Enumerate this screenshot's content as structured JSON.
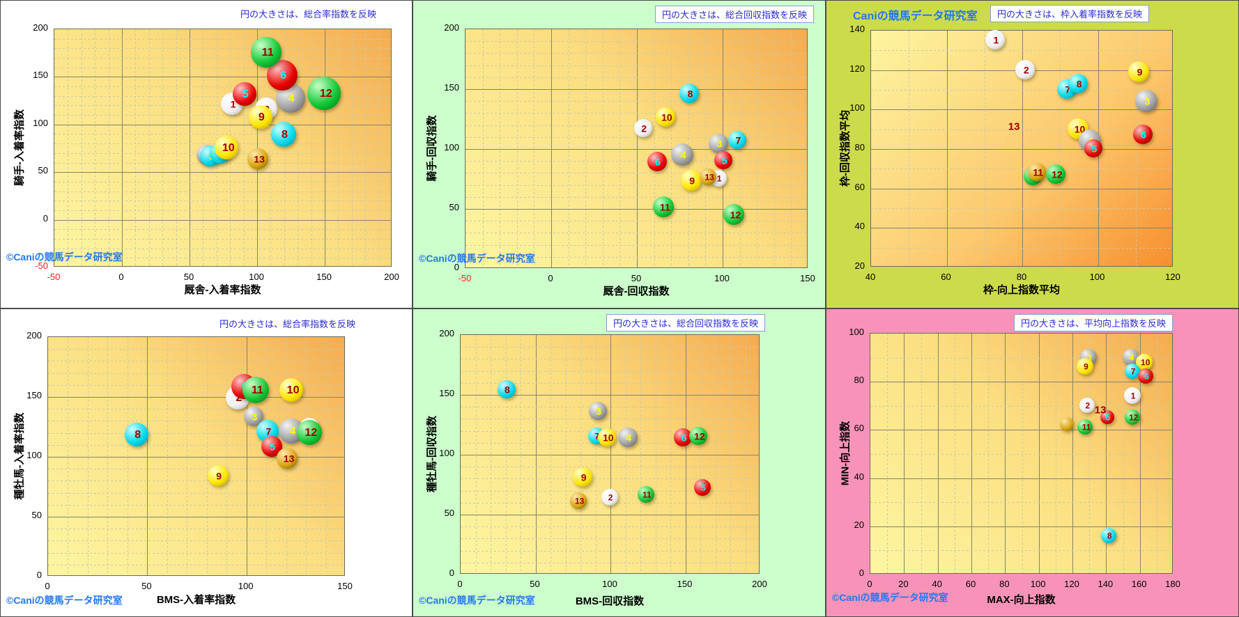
{
  "page": {
    "copyright": "©Caniの競馬データ研究室",
    "brand_header": "Caniの競馬データ研究室"
  },
  "ball_palette": {
    "white": [
      "#ffffff",
      "#f0f0f0",
      "#a8a8a8"
    ],
    "gray": [
      "#f4f4f4",
      "#9e9e9e",
      "#525252"
    ],
    "red": [
      "#ffc4c4",
      "#e60000",
      "#7c0000"
    ],
    "cyan": [
      "#ccffff",
      "#00d8ea",
      "#00879e"
    ],
    "yellow": [
      "#ffffcf",
      "#ffe600",
      "#b29400"
    ],
    "green": [
      "#c8ffc8",
      "#12c634",
      "#006e14"
    ],
    "gold": [
      "#ffe9ae",
      "#d9a511",
      "#6b5000"
    ]
  },
  "number_label_colors": {
    "default": "#a00000",
    "3": "#ffff00",
    "4": "#ffff00",
    "5": "#00ffff",
    "6": "#00ffff"
  },
  "chart_data": [
    {
      "type": "bubble",
      "panel_bg": "#ffffff",
      "annotation": "円の大きさは、総合率指数を反映",
      "xlabel": "厩舎-入着率指数",
      "ylabel": "騎手-入着率指数",
      "xlim": [
        -50,
        200
      ],
      "ylim": [
        -50,
        200
      ],
      "x_ticks": [
        -50,
        0,
        50,
        100,
        150,
        200
      ],
      "y_ticks": [
        -50,
        0,
        50,
        100,
        150,
        200
      ],
      "grid": "on",
      "show_copyright": true,
      "show_header": false,
      "points": [
        {
          "label": "",
          "x": 63,
          "y": 68,
          "r": 14,
          "color": "gray"
        },
        {
          "label": "3",
          "x": 66,
          "y": 66,
          "r": 15,
          "color": "cyan"
        },
        {
          "label": "7",
          "x": 73,
          "y": 69,
          "r": 15,
          "color": "cyan"
        },
        {
          "label": "10",
          "x": 78,
          "y": 75,
          "r": 17,
          "color": "yellow"
        },
        {
          "label": "1",
          "x": 82,
          "y": 121,
          "r": 16,
          "color": "white"
        },
        {
          "label": "5",
          "x": 91,
          "y": 131,
          "r": 17,
          "color": "red"
        },
        {
          "label": "2",
          "x": 107,
          "y": 116,
          "r": 16,
          "color": "white"
        },
        {
          "label": "9",
          "x": 103,
          "y": 107,
          "r": 17,
          "color": "yellow"
        },
        {
          "label": "13",
          "x": 101,
          "y": 63,
          "r": 15,
          "color": "gold"
        },
        {
          "label": "4",
          "x": 125,
          "y": 127,
          "r": 21,
          "color": "gray"
        },
        {
          "label": "6",
          "x": 119,
          "y": 151,
          "r": 22,
          "color": "red"
        },
        {
          "label": "11",
          "x": 107,
          "y": 175,
          "r": 22,
          "color": "green"
        },
        {
          "label": "12",
          "x": 150,
          "y": 132,
          "r": 24,
          "color": "green"
        },
        {
          "label": "8",
          "x": 120,
          "y": 89,
          "r": 18,
          "color": "cyan"
        }
      ],
      "text_labels": []
    },
    {
      "type": "bubble",
      "panel_bg": "#ccffcc",
      "annotation": "円の大きさは、総合回収指数を反映",
      "xlabel": "厩舎-回収指数",
      "ylabel": "騎手-回収指数",
      "xlim": [
        -50,
        150
      ],
      "ylim": [
        0,
        200
      ],
      "x_ticks": [
        -50,
        0,
        50,
        100,
        150
      ],
      "y_ticks": [
        0,
        50,
        100,
        150,
        200
      ],
      "grid": "on",
      "show_copyright": true,
      "show_header": false,
      "points": [
        {
          "label": "4",
          "x": 77,
          "y": 95,
          "r": 16,
          "color": "gray"
        },
        {
          "label": "6",
          "x": 62,
          "y": 89,
          "r": 14,
          "color": "red"
        },
        {
          "label": "2",
          "x": 54,
          "y": 117,
          "r": 13,
          "color": "white"
        },
        {
          "label": "10",
          "x": 67,
          "y": 126,
          "r": 14,
          "color": "yellow"
        },
        {
          "label": "8",
          "x": 81,
          "y": 146,
          "r": 14,
          "color": "cyan"
        },
        {
          "label": "3",
          "x": 98,
          "y": 104,
          "r": 14,
          "color": "gray"
        },
        {
          "label": "7",
          "x": 109,
          "y": 107,
          "r": 13,
          "color": "cyan"
        },
        {
          "label": "5",
          "x": 101,
          "y": 90,
          "r": 13,
          "color": "red"
        },
        {
          "label": "9",
          "x": 82,
          "y": 73,
          "r": 15,
          "color": "yellow"
        },
        {
          "label": "1",
          "x": 98,
          "y": 75,
          "r": 12,
          "color": "white"
        },
        {
          "label": "13",
          "x": 92,
          "y": 76,
          "r": 12,
          "color": "gold"
        },
        {
          "label": "11",
          "x": 66,
          "y": 51,
          "r": 15,
          "color": "green"
        },
        {
          "label": "12",
          "x": 107,
          "y": 45,
          "r": 15,
          "color": "green"
        }
      ],
      "text_labels": []
    },
    {
      "type": "bubble",
      "panel_bg": "#cbdb4b",
      "annotation": "円の大きさは、枠入着率指数を反映",
      "xlabel": "枠-向上指数平均",
      "ylabel": "枠-回収指数平均",
      "xlim": [
        40,
        120
      ],
      "ylim": [
        20,
        140
      ],
      "x_ticks": [
        40,
        60,
        80,
        100,
        120
      ],
      "y_ticks": [
        20,
        40,
        60,
        80,
        100,
        120,
        140
      ],
      "grid": "on",
      "show_copyright": false,
      "show_header": true,
      "points": [
        {
          "label": "1",
          "x": 73,
          "y": 135,
          "r": 14,
          "color": "white"
        },
        {
          "label": "2",
          "x": 81,
          "y": 120,
          "r": 14,
          "color": "white"
        },
        {
          "label": "7",
          "x": 92,
          "y": 110,
          "r": 14,
          "color": "cyan"
        },
        {
          "label": "8",
          "x": 95,
          "y": 113,
          "r": 14,
          "color": "cyan"
        },
        {
          "label": "9",
          "x": 111,
          "y": 119,
          "r": 15,
          "color": "yellow"
        },
        {
          "label": "3",
          "x": 113,
          "y": 104,
          "r": 16,
          "color": "gray"
        },
        {
          "label": "10",
          "x": 95,
          "y": 90,
          "r": 15,
          "color": "yellow"
        },
        {
          "label": "4",
          "x": 98,
          "y": 84,
          "r": 16,
          "color": "gray"
        },
        {
          "label": "5",
          "x": 99,
          "y": 80,
          "r": 13,
          "color": "red"
        },
        {
          "label": "6",
          "x": 112,
          "y": 87,
          "r": 14,
          "color": "red"
        },
        {
          "label": "",
          "x": 83,
          "y": 66,
          "r": 13,
          "color": "green"
        },
        {
          "label": "11",
          "x": 84,
          "y": 68,
          "r": 13,
          "color": "gold"
        },
        {
          "label": "12",
          "x": 89,
          "y": 67,
          "r": 14,
          "color": "green"
        }
      ],
      "text_labels": [
        {
          "text": "13",
          "x": 78,
          "y": 91
        }
      ]
    },
    {
      "type": "bubble",
      "panel_bg": "#ffffff",
      "annotation": "円の大きさは、総合率指数を反映",
      "xlabel": "BMS-入着率指数",
      "ylabel": "種牡馬-入着率指数",
      "xlim": [
        0,
        150
      ],
      "ylim": [
        0,
        200
      ],
      "x_ticks": [
        0,
        50,
        100,
        150
      ],
      "y_ticks": [
        0,
        50,
        100,
        150,
        200
      ],
      "grid": "on",
      "show_copyright": true,
      "show_header": false,
      "points": [
        {
          "label": "2",
          "x": 96,
          "y": 149,
          "r": 17,
          "color": "white"
        },
        {
          "label": "6",
          "x": 99,
          "y": 158,
          "r": 18,
          "color": "red"
        },
        {
          "label": "11",
          "x": 105,
          "y": 155,
          "r": 19,
          "color": "green"
        },
        {
          "label": "10",
          "x": 123,
          "y": 155,
          "r": 17,
          "color": "yellow"
        },
        {
          "label": "3",
          "x": 104,
          "y": 133,
          "r": 14,
          "color": "gray"
        },
        {
          "label": "7",
          "x": 111,
          "y": 121,
          "r": 16,
          "color": "cyan"
        },
        {
          "label": "4",
          "x": 123,
          "y": 121,
          "r": 18,
          "color": "gray"
        },
        {
          "label": "1",
          "x": 132,
          "y": 124,
          "r": 14,
          "color": "white"
        },
        {
          "label": "12",
          "x": 132,
          "y": 120,
          "r": 18,
          "color": "green"
        },
        {
          "label": "5",
          "x": 113,
          "y": 108,
          "r": 15,
          "color": "red"
        },
        {
          "label": "13",
          "x": 121,
          "y": 98,
          "r": 15,
          "color": "gold"
        },
        {
          "label": "9",
          "x": 86,
          "y": 84,
          "r": 15,
          "color": "yellow"
        },
        {
          "label": "8",
          "x": 45,
          "y": 118,
          "r": 17,
          "color": "cyan"
        }
      ],
      "text_labels": []
    },
    {
      "type": "bubble",
      "panel_bg": "#ccffcc",
      "annotation": "円の大きさは、総合回収指数を反映",
      "xlabel": "BMS-回収指数",
      "ylabel": "種牡馬-回収指数",
      "xlim": [
        0,
        200
      ],
      "ylim": [
        0,
        200
      ],
      "x_ticks": [
        0,
        50,
        100,
        150,
        200
      ],
      "y_ticks": [
        0,
        50,
        100,
        150,
        200
      ],
      "grid": "on",
      "show_copyright": true,
      "show_header": false,
      "points": [
        {
          "label": "8",
          "x": 31,
          "y": 154,
          "r": 13,
          "color": "cyan"
        },
        {
          "label": "3",
          "x": 92,
          "y": 136,
          "r": 13,
          "color": "gray"
        },
        {
          "label": "7",
          "x": 91,
          "y": 115,
          "r": 12,
          "color": "cyan"
        },
        {
          "label": "10",
          "x": 98,
          "y": 114,
          "r": 13,
          "color": "yellow"
        },
        {
          "label": "4",
          "x": 112,
          "y": 114,
          "r": 14,
          "color": "gray"
        },
        {
          "label": "6",
          "x": 149,
          "y": 114,
          "r": 13,
          "color": "red"
        },
        {
          "label": "12",
          "x": 159,
          "y": 115,
          "r": 13,
          "color": "green"
        },
        {
          "label": "9",
          "x": 82,
          "y": 81,
          "r": 14,
          "color": "yellow"
        },
        {
          "label": "13",
          "x": 79,
          "y": 61,
          "r": 12,
          "color": "gold"
        },
        {
          "label": "2",
          "x": 100,
          "y": 64,
          "r": 12,
          "color": "white"
        },
        {
          "label": "11",
          "x": 124,
          "y": 66,
          "r": 12,
          "color": "green"
        },
        {
          "label": "5",
          "x": 162,
          "y": 72,
          "r": 12,
          "color": "red"
        }
      ],
      "text_labels": []
    },
    {
      "type": "bubble",
      "panel_bg": "#f793b9",
      "annotation": "円の大きさは、平均向上指数を反映",
      "xlabel": "MAX-向上指数",
      "ylabel": "MIN-向上指数",
      "xlim": [
        0,
        180
      ],
      "ylim": [
        0,
        100
      ],
      "x_ticks": [
        0,
        20,
        40,
        60,
        80,
        100,
        120,
        140,
        160,
        180
      ],
      "y_ticks": [
        0,
        20,
        40,
        60,
        80,
        100
      ],
      "grid": "on",
      "show_copyright": true,
      "show_header": false,
      "points": [
        {
          "label": "3",
          "x": 130,
          "y": 90,
          "r": 12,
          "color": "gray"
        },
        {
          "label": "9",
          "x": 128,
          "y": 86,
          "r": 12,
          "color": "yellow"
        },
        {
          "label": "4",
          "x": 155,
          "y": 90,
          "r": 12,
          "color": "gray"
        },
        {
          "label": "10",
          "x": 163,
          "y": 88,
          "r": 12,
          "color": "yellow"
        },
        {
          "label": "7",
          "x": 156,
          "y": 84,
          "r": 11,
          "color": "cyan"
        },
        {
          "label": "6",
          "x": 164,
          "y": 82,
          "r": 11,
          "color": "red"
        },
        {
          "label": "2",
          "x": 129,
          "y": 70,
          "r": 11,
          "color": "white"
        },
        {
          "label": "1",
          "x": 156,
          "y": 74,
          "r": 12,
          "color": "white"
        },
        {
          "label": "",
          "x": 117,
          "y": 62,
          "r": 10,
          "color": "gold"
        },
        {
          "label": "11",
          "x": 128,
          "y": 61,
          "r": 11,
          "color": "green"
        },
        {
          "label": "5",
          "x": 141,
          "y": 65,
          "r": 10,
          "color": "red"
        },
        {
          "label": "12",
          "x": 156,
          "y": 65,
          "r": 11,
          "color": "green"
        },
        {
          "label": "8",
          "x": 142,
          "y": 16,
          "r": 11,
          "color": "cyan"
        }
      ],
      "text_labels": [
        {
          "text": "13",
          "x": 137,
          "y": 68
        }
      ]
    }
  ]
}
